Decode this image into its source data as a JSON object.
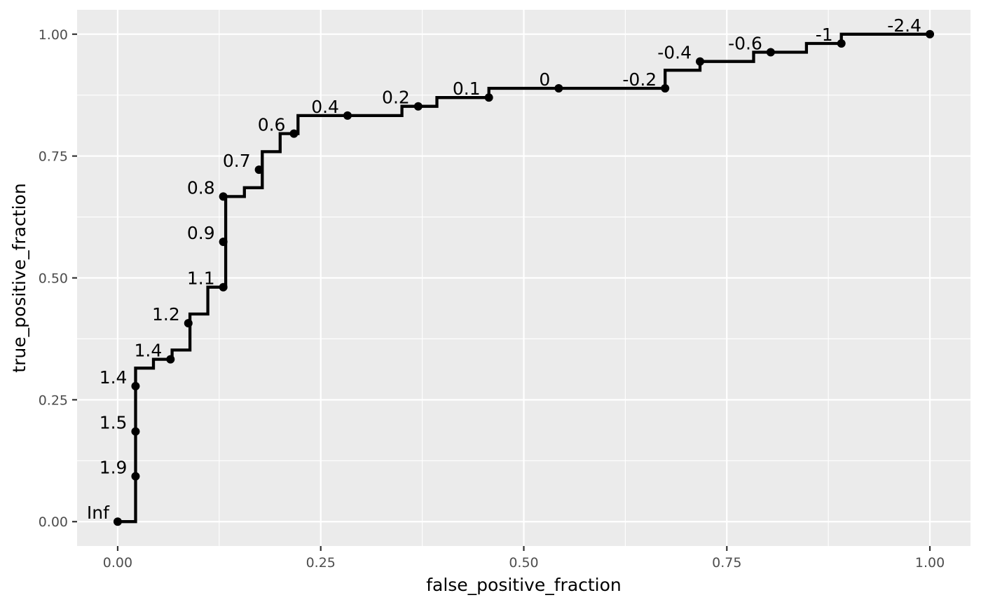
{
  "chart_data": {
    "type": "line",
    "xlabel": "false_positive_fraction",
    "ylabel": "true_positive_fraction",
    "xlim": [
      -0.05,
      1.05
    ],
    "ylim": [
      -0.05,
      1.05
    ],
    "x_ticks": [
      {
        "value": 0,
        "label": "0.00"
      },
      {
        "value": 0.25,
        "label": "0.25"
      },
      {
        "value": 0.5,
        "label": "0.50"
      },
      {
        "value": 0.75,
        "label": "0.75"
      },
      {
        "value": 1,
        "label": "1.00"
      }
    ],
    "y_ticks": [
      {
        "value": 0,
        "label": "0.00"
      },
      {
        "value": 0.25,
        "label": "0.25"
      },
      {
        "value": 0.5,
        "label": "0.50"
      },
      {
        "value": 0.75,
        "label": "0.75"
      },
      {
        "value": 1,
        "label": "1.00"
      }
    ],
    "grid": true,
    "background": "#ebebeb",
    "grid_color": "#ffffff",
    "line_color": "#000000",
    "step_path": [
      [
        0,
        0
      ],
      [
        0.022,
        0
      ],
      [
        0.022,
        0.315
      ],
      [
        0.044,
        0.315
      ],
      [
        0.044,
        0.333
      ],
      [
        0.067,
        0.333
      ],
      [
        0.067,
        0.352
      ],
      [
        0.089,
        0.352
      ],
      [
        0.089,
        0.426
      ],
      [
        0.111,
        0.426
      ],
      [
        0.111,
        0.481
      ],
      [
        0.133,
        0.481
      ],
      [
        0.133,
        0.667
      ],
      [
        0.156,
        0.667
      ],
      [
        0.156,
        0.685
      ],
      [
        0.178,
        0.685
      ],
      [
        0.178,
        0.759
      ],
      [
        0.2,
        0.759
      ],
      [
        0.2,
        0.796
      ],
      [
        0.222,
        0.796
      ],
      [
        0.222,
        0.833
      ],
      [
        0.35,
        0.833
      ],
      [
        0.35,
        0.852
      ],
      [
        0.393,
        0.852
      ],
      [
        0.393,
        0.87
      ],
      [
        0.457,
        0.87
      ],
      [
        0.457,
        0.889
      ],
      [
        0.674,
        0.889
      ],
      [
        0.674,
        0.926
      ],
      [
        0.717,
        0.926
      ],
      [
        0.717,
        0.944
      ],
      [
        0.783,
        0.944
      ],
      [
        0.783,
        0.963
      ],
      [
        0.848,
        0.963
      ],
      [
        0.848,
        0.981
      ],
      [
        0.891,
        0.981
      ],
      [
        0.891,
        1
      ],
      [
        1,
        1
      ]
    ],
    "points": [
      {
        "x": 0,
        "y": 0,
        "label": "Inf"
      },
      {
        "x": 0.022,
        "y": 0.093,
        "label": "1.9"
      },
      {
        "x": 0.022,
        "y": 0.185,
        "label": "1.5"
      },
      {
        "x": 0.022,
        "y": 0.278,
        "label": "1.4"
      },
      {
        "x": 0.065,
        "y": 0.333,
        "label": "1.4"
      },
      {
        "x": 0.087,
        "y": 0.407,
        "label": "1.2"
      },
      {
        "x": 0.13,
        "y": 0.481,
        "label": "1.1"
      },
      {
        "x": 0.13,
        "y": 0.574,
        "label": "0.9"
      },
      {
        "x": 0.13,
        "y": 0.667,
        "label": "0.8"
      },
      {
        "x": 0.174,
        "y": 0.722,
        "label": "0.7"
      },
      {
        "x": 0.217,
        "y": 0.796,
        "label": "0.6"
      },
      {
        "x": 0.283,
        "y": 0.833,
        "label": "0.4"
      },
      {
        "x": 0.37,
        "y": 0.852,
        "label": "0.2"
      },
      {
        "x": 0.457,
        "y": 0.87,
        "label": "0.1"
      },
      {
        "x": 0.543,
        "y": 0.889,
        "label": "0"
      },
      {
        "x": 0.674,
        "y": 0.889,
        "label": "-0.2"
      },
      {
        "x": 0.717,
        "y": 0.944,
        "label": "-0.4"
      },
      {
        "x": 0.804,
        "y": 0.963,
        "label": "-0.6"
      },
      {
        "x": 0.891,
        "y": 0.981,
        "label": "-1"
      },
      {
        "x": 1,
        "y": 1,
        "label": "-2.4"
      }
    ]
  }
}
